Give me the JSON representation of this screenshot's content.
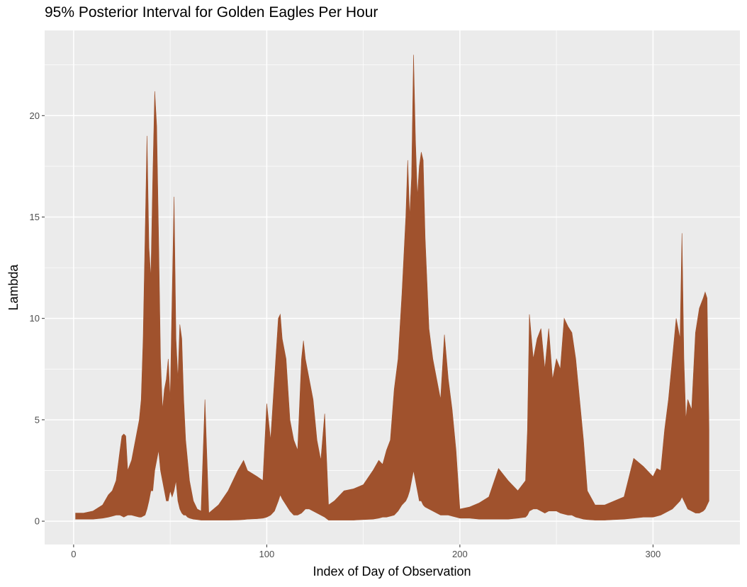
{
  "chart_data": {
    "type": "area",
    "title": "95% Posterior Interval for Golden Eagles Per Hour",
    "xlabel": "Index of Day of Observation",
    "ylabel": "Lambda",
    "xlim": [
      -15,
      345
    ],
    "ylim": [
      -1.15,
      24.2
    ],
    "x_ticks": [
      0,
      100,
      200,
      300
    ],
    "x_tick_labels": [
      "0",
      "100",
      "200",
      "300"
    ],
    "y_ticks": [
      0,
      5,
      10,
      15,
      20
    ],
    "y_tick_labels": [
      "0",
      "5",
      "10",
      "15",
      "20"
    ],
    "grid": true,
    "colors": {
      "band": "#A0522D",
      "panel": "#EBEBEB",
      "gridline": "#FFFFFF"
    },
    "series": [
      {
        "x": [
          1,
          5,
          10,
          15,
          18,
          20,
          22,
          24,
          25,
          26,
          27,
          28,
          30,
          32,
          34,
          35,
          36,
          37,
          38,
          39,
          40,
          41,
          42,
          43,
          44,
          45,
          46,
          47,
          48,
          49,
          50,
          51,
          52,
          53,
          54,
          55,
          56,
          57,
          58,
          59,
          60,
          62,
          64,
          66,
          68,
          70,
          75,
          80,
          85,
          88,
          90,
          95,
          98,
          100,
          102,
          104,
          106,
          107,
          108,
          110,
          112,
          114,
          116,
          118,
          119,
          120,
          122,
          124,
          126,
          128,
          130,
          132,
          135,
          140,
          145,
          150,
          155,
          158,
          160,
          162,
          164,
          166,
          168,
          170,
          172,
          173,
          174,
          175,
          176,
          177,
          178,
          179,
          180,
          181,
          182,
          184,
          186,
          188,
          190,
          192,
          194,
          196,
          198,
          200,
          205,
          210,
          215,
          220,
          225,
          230,
          234,
          235,
          236,
          238,
          240,
          242,
          244,
          246,
          248,
          250,
          252,
          254,
          256,
          258,
          260,
          262,
          264,
          266,
          270,
          275,
          280,
          285,
          290,
          295,
          300,
          302,
          304,
          306,
          308,
          310,
          312,
          314,
          315,
          316,
          317,
          318,
          320,
          322,
          324,
          326,
          327,
          328,
          329
        ],
        "lower": [
          0.1,
          0.1,
          0.1,
          0.15,
          0.2,
          0.25,
          0.3,
          0.3,
          0.25,
          0.2,
          0.25,
          0.3,
          0.3,
          0.25,
          0.2,
          0.2,
          0.25,
          0.3,
          0.6,
          1.0,
          1.5,
          1.5,
          2.5,
          3.0,
          3.5,
          2.5,
          2.0,
          1.5,
          1.0,
          1.0,
          1.5,
          1.2,
          1.5,
          2.0,
          1.0,
          0.6,
          0.4,
          0.3,
          0.3,
          0.2,
          0.15,
          0.1,
          0.08,
          0.05,
          0.05,
          0.05,
          0.05,
          0.05,
          0.06,
          0.08,
          0.1,
          0.12,
          0.15,
          0.2,
          0.3,
          0.5,
          1.0,
          1.3,
          1.1,
          0.8,
          0.5,
          0.3,
          0.3,
          0.4,
          0.5,
          0.6,
          0.6,
          0.5,
          0.4,
          0.3,
          0.2,
          0.05,
          0.05,
          0.05,
          0.05,
          0.08,
          0.1,
          0.15,
          0.2,
          0.2,
          0.25,
          0.3,
          0.5,
          0.8,
          1.0,
          1.2,
          1.5,
          2.0,
          2.5,
          2.0,
          1.5,
          1.0,
          1.0,
          0.8,
          0.7,
          0.6,
          0.5,
          0.4,
          0.3,
          0.3,
          0.3,
          0.25,
          0.2,
          0.15,
          0.15,
          0.1,
          0.1,
          0.1,
          0.1,
          0.15,
          0.2,
          0.3,
          0.5,
          0.6,
          0.6,
          0.5,
          0.4,
          0.5,
          0.5,
          0.5,
          0.4,
          0.35,
          0.3,
          0.3,
          0.2,
          0.15,
          0.1,
          0.08,
          0.05,
          0.05,
          0.08,
          0.1,
          0.15,
          0.2,
          0.2,
          0.25,
          0.3,
          0.4,
          0.5,
          0.6,
          0.8,
          1.0,
          1.2,
          1.0,
          0.8,
          0.6,
          0.5,
          0.4,
          0.4,
          0.5,
          0.6,
          0.8,
          1.0
        ],
        "upper": [
          0.4,
          0.4,
          0.5,
          0.8,
          1.3,
          1.5,
          2.0,
          3.5,
          4.2,
          4.3,
          4.2,
          2.5,
          3.0,
          4.0,
          5.0,
          6.0,
          9.0,
          14.0,
          19.0,
          13.5,
          12.0,
          17.0,
          21.2,
          19.5,
          14.0,
          8.0,
          5.5,
          6.5,
          7.0,
          8.0,
          6.0,
          11.0,
          16.0,
          9.0,
          7.0,
          9.7,
          9.0,
          6.0,
          4.0,
          3.0,
          2.0,
          1.0,
          0.6,
          0.5,
          6.0,
          0.4,
          0.8,
          1.5,
          2.5,
          3.0,
          2.5,
          2.2,
          2.0,
          5.8,
          4.0,
          7.0,
          10.0,
          10.2,
          9.0,
          8.0,
          5.0,
          4.0,
          3.5,
          8.0,
          8.9,
          8.0,
          7.0,
          6.0,
          4.0,
          3.0,
          5.3,
          0.8,
          1.0,
          1.5,
          1.6,
          1.8,
          2.5,
          3.0,
          2.8,
          3.5,
          4.0,
          6.5,
          8.0,
          11.2,
          15.0,
          17.8,
          15.0,
          17.0,
          23.0,
          18.8,
          16.0,
          17.5,
          18.2,
          17.8,
          14.0,
          9.5,
          8.0,
          7.0,
          6.0,
          9.2,
          7.0,
          5.5,
          3.5,
          0.6,
          0.7,
          0.9,
          1.2,
          2.6,
          2.0,
          1.5,
          2.0,
          4.5,
          10.2,
          8.0,
          9.0,
          9.5,
          7.5,
          9.5,
          7.0,
          8.0,
          7.5,
          10.0,
          9.6,
          9.3,
          8.0,
          6.0,
          4.0,
          1.5,
          0.8,
          0.8,
          1.0,
          1.2,
          3.1,
          2.7,
          2.2,
          2.6,
          2.5,
          4.5,
          6.0,
          8.0,
          10.0,
          9.0,
          14.2,
          8.0,
          5.0,
          6.0,
          5.5,
          9.3,
          10.5,
          11.0,
          11.3,
          11.0,
          4.5
        ]
      }
    ]
  }
}
